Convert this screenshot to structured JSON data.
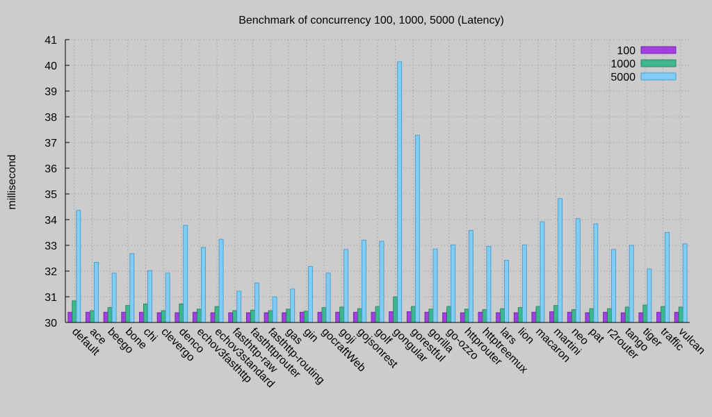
{
  "chart_data": {
    "type": "bar",
    "title": "Benchmark of concurrency 100, 1000, 5000 (Latency)",
    "xlabel": "",
    "ylabel": "millisecond",
    "ylim": [
      30,
      41
    ],
    "yticks": [
      30,
      31,
      32,
      33,
      34,
      35,
      36,
      37,
      38,
      39,
      40,
      41
    ],
    "grid": true,
    "legend_position": "top-right",
    "categories": [
      "default",
      "ace",
      "beego",
      "bone",
      "chi",
      "clevergo",
      "denco",
      "echov3fasthttp",
      "echov3standard",
      "fasthttp-raw",
      "fasthttprouter",
      "fasthttp-routing",
      "gas",
      "gin",
      "gocraftWeb",
      "goji",
      "gojsonrest",
      "golf",
      "gongular",
      "gorestful",
      "gorilla",
      "go-ozzo",
      "httprouter",
      "httptreemux",
      "lars",
      "lion",
      "macaron",
      "martini",
      "neo",
      "pat",
      "r2router",
      "tango",
      "tiger",
      "traffic",
      "vulcan"
    ],
    "series": [
      {
        "name": "100",
        "color": "#a040e0",
        "stroke": "#6a1aa0",
        "values": [
          30.4,
          30.4,
          30.4,
          30.4,
          30.4,
          30.38,
          30.38,
          30.4,
          30.38,
          30.38,
          30.38,
          30.38,
          30.38,
          30.4,
          30.4,
          30.4,
          30.4,
          30.4,
          30.42,
          30.42,
          30.4,
          30.38,
          30.38,
          30.4,
          30.38,
          30.38,
          30.4,
          30.42,
          30.4,
          30.38,
          30.4,
          30.38,
          30.38,
          30.4,
          30.4
        ]
      },
      {
        "name": "1000",
        "color": "#3cb88c",
        "stroke": "#1f7a58",
        "values": [
          30.84,
          30.46,
          30.58,
          30.66,
          30.72,
          30.46,
          30.72,
          30.52,
          30.62,
          30.46,
          30.48,
          30.46,
          30.52,
          30.44,
          30.58,
          30.6,
          30.54,
          30.62,
          31.0,
          30.62,
          30.52,
          30.62,
          30.52,
          30.5,
          30.54,
          30.58,
          30.62,
          30.66,
          30.5,
          30.54,
          30.54,
          30.6,
          30.68,
          30.62,
          30.6
        ]
      },
      {
        "name": "5000",
        "color": "#7fcdf5",
        "stroke": "#3f93c7",
        "values": [
          34.36,
          32.34,
          31.92,
          32.68,
          32.02,
          31.92,
          33.78,
          32.92,
          33.24,
          31.22,
          31.54,
          31.0,
          31.3,
          32.18,
          31.92,
          32.84,
          33.2,
          33.16,
          40.14,
          37.28,
          32.86,
          33.02,
          33.58,
          32.96,
          32.42,
          33.02,
          33.92,
          34.82,
          34.04,
          33.84,
          32.84,
          33.0,
          32.08,
          33.5,
          33.06
        ]
      }
    ]
  }
}
